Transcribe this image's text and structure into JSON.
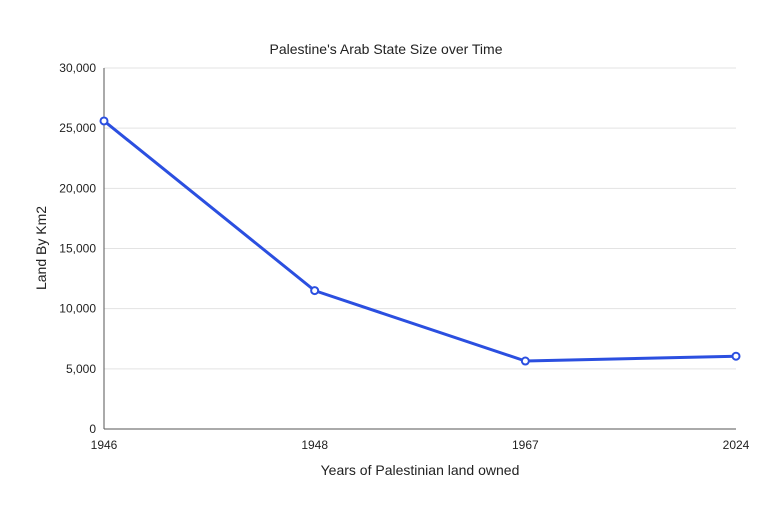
{
  "chart_data": {
    "type": "line",
    "title": "Palestine's Arab State Size over Time",
    "xlabel": "Years of Palestinian land owned",
    "ylabel": "Land By Km2",
    "categories": [
      "1946",
      "1948",
      "1967",
      "2024"
    ],
    "series": [
      {
        "values": [
          25600,
          11500,
          5650,
          6050
        ]
      }
    ],
    "ylim": [
      0,
      30000
    ],
    "yticks": [
      "0",
      "5,000",
      "10,000",
      "15,000",
      "20,000",
      "25,000",
      "30,000"
    ],
    "grid": true,
    "line_color": "#2b4fe0"
  }
}
